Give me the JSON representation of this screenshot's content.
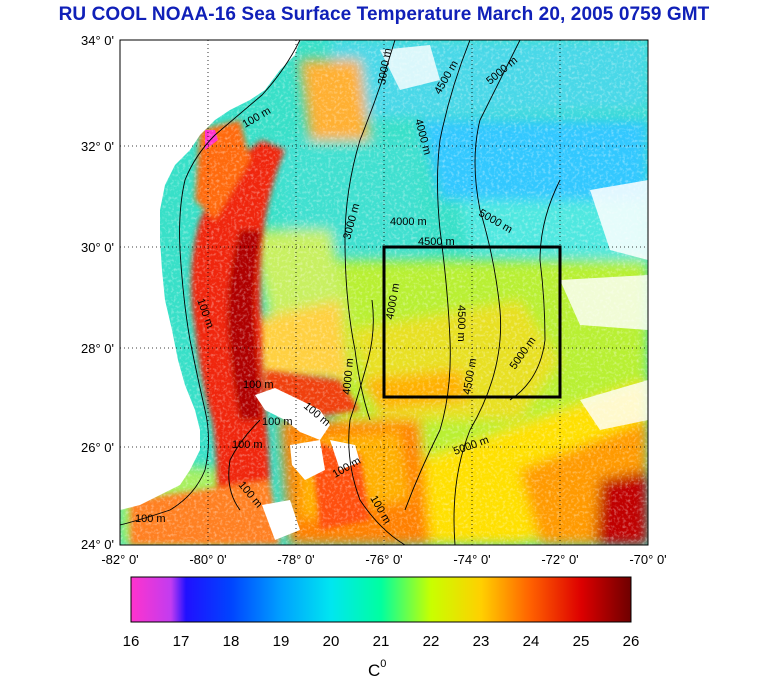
{
  "title": "RU COOL  NOAA-16 Sea Surface Temperature March 20, 2005 0759 GMT",
  "map": {
    "lon_range": [
      -82,
      -70
    ],
    "lat_range": [
      24,
      34
    ],
    "lat_ticks": [
      "34° 0'",
      "32° 0'",
      "30° 0'",
      "28° 0'",
      "26° 0'",
      "24° 0'"
    ],
    "lon_ticks": [
      "-82° 0'",
      "-80° 0'",
      "-78° 0'",
      "-76° 0'",
      "-74° 0'",
      "-72° 0'",
      "-70° 0'"
    ],
    "grid": "dotted",
    "study_box": {
      "lon": [
        -76,
        -72
      ],
      "lat": [
        27,
        30
      ]
    },
    "land_color": "#ffffff",
    "contour_labels": [
      "100 m",
      "100 m",
      "100 m",
      "100 m",
      "100 m",
      "100 m",
      "100 m",
      "100 m",
      "100 m",
      "100 m",
      "3000 m",
      "3000 m",
      "4000 m",
      "4000 m",
      "4000 m",
      "4000 m",
      "4500 m",
      "4500 m",
      "4500 m",
      "4500 m",
      "5000 m",
      "5000 m",
      "5000 m",
      "5000 m"
    ]
  },
  "colorbar": {
    "ticks": [
      "16",
      "17",
      "18",
      "19",
      "20",
      "21",
      "22",
      "23",
      "24",
      "25",
      "26"
    ],
    "min": 16,
    "max": 26,
    "label": "C",
    "label_sup": "0",
    "colors": [
      "#ff33cc",
      "#b25cf0",
      "#0000ff",
      "#0066ff",
      "#00d5ff",
      "#00ffa8",
      "#ccff00",
      "#ffd800",
      "#ff6a00",
      "#e00000",
      "#700000"
    ]
  }
}
